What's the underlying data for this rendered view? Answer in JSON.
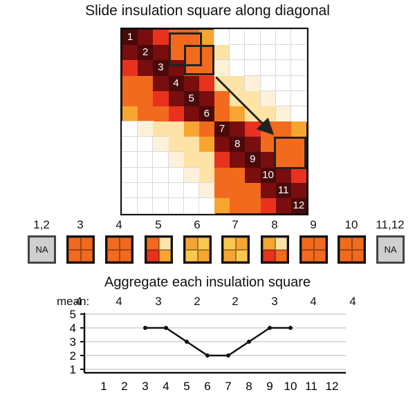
{
  "top_title": "Slide insulation square along diagonal",
  "diagonal_bins": [
    "1",
    "2",
    "3",
    "4",
    "5",
    "6",
    "7",
    "8",
    "9",
    "10",
    "11",
    "12"
  ],
  "square_labels": [
    "1,2",
    "3",
    "4",
    "5",
    "6",
    "7",
    "8",
    "9",
    "10",
    "11,12"
  ],
  "na_text": "NA",
  "aggregate_title": "Aggregate each insulation square",
  "mean_label": "mean:",
  "mean_values": [
    "4",
    "4",
    "3",
    "2",
    "2",
    "3",
    "4",
    "4"
  ],
  "colors": {
    "dark": "#4a0a0a",
    "darkred": "#7a0d0d",
    "red": "#e8321e",
    "orange": "#f26a1e",
    "lightorange": "#f7a531",
    "yellow": "#fbc74f",
    "paleyellow": "#fde3a6",
    "faint": "#fdf1da",
    "white": "#ffffff",
    "na_gray": "#cfcfcf"
  },
  "square_icons": [
    {
      "label": "1,2",
      "na": true
    },
    {
      "label": "3",
      "quads": [
        "orange",
        "orange",
        "orange",
        "orange"
      ]
    },
    {
      "label": "4",
      "quads": [
        "orange",
        "orange",
        "orange",
        "orange"
      ]
    },
    {
      "label": "5",
      "quads": [
        "orange",
        "paleyellow",
        "red",
        "lightorange"
      ]
    },
    {
      "label": "6",
      "quads": [
        "lightorange",
        "yellow",
        "yellow",
        "lightorange"
      ]
    },
    {
      "label": "7",
      "quads": [
        "yellow",
        "lightorange",
        "lightorange",
        "yellow"
      ]
    },
    {
      "label": "8",
      "quads": [
        "lightorange",
        "paleyellow",
        "red",
        "orange"
      ]
    },
    {
      "label": "9",
      "quads": [
        "orange",
        "orange",
        "orange",
        "orange"
      ]
    },
    {
      "label": "10",
      "quads": [
        "orange",
        "orange",
        "orange",
        "orange"
      ]
    },
    {
      "label": "11,12",
      "na": true
    }
  ],
  "chart_data": {
    "type": "line",
    "x": [
      1,
      2,
      3,
      4,
      5,
      6,
      7,
      8,
      9,
      10,
      11,
      12
    ],
    "series": [
      {
        "values": [
          null,
          null,
          4,
          4,
          3,
          2,
          2,
          3,
          4,
          4,
          null,
          null
        ]
      }
    ],
    "ylim": [
      1,
      5
    ],
    "yticks": [
      1,
      2,
      3,
      4,
      5
    ],
    "xticks": [
      "1",
      "2",
      "3",
      "4",
      "5",
      "6",
      "7",
      "8",
      "9",
      "10",
      "11",
      "12"
    ],
    "grid": true
  },
  "matrix": {
    "n": 12,
    "grid": [
      [
        "dark",
        "darkred",
        "red",
        "orange",
        "orange",
        "lightorange",
        "white",
        "white",
        "white",
        "white",
        "white",
        "white"
      ],
      [
        "darkred",
        "dark",
        "darkred",
        "orange",
        "orange",
        "orange",
        "paleyellow",
        "white",
        "white",
        "white",
        "white",
        "white"
      ],
      [
        "red",
        "darkred",
        "dark",
        "darkred",
        "orange",
        "orange",
        "faint",
        "white",
        "white",
        "white",
        "white",
        "white"
      ],
      [
        "orange",
        "orange",
        "darkred",
        "dark",
        "darkred",
        "red",
        "paleyellow",
        "paleyellow",
        "faint",
        "white",
        "white",
        "white"
      ],
      [
        "orange",
        "orange",
        "red",
        "darkred",
        "dark",
        "darkred",
        "orange",
        "paleyellow",
        "paleyellow",
        "faint",
        "white",
        "white"
      ],
      [
        "lightorange",
        "orange",
        "orange",
        "red",
        "darkred",
        "dark",
        "orange",
        "lightorange",
        "paleyellow",
        "paleyellow",
        "faint",
        "white"
      ],
      [
        "white",
        "faint",
        "paleyellow",
        "paleyellow",
        "lightorange",
        "orange",
        "dark",
        "darkred",
        "red",
        "orange",
        "orange",
        "lightorange"
      ],
      [
        "white",
        "white",
        "faint",
        "paleyellow",
        "paleyellow",
        "lightorange",
        "darkred",
        "dark",
        "darkred",
        "orange",
        "orange",
        "orange"
      ],
      [
        "white",
        "white",
        "white",
        "faint",
        "paleyellow",
        "paleyellow",
        "red",
        "darkred",
        "dark",
        "darkred",
        "orange",
        "orange"
      ],
      [
        "white",
        "white",
        "white",
        "white",
        "faint",
        "paleyellow",
        "orange",
        "orange",
        "darkred",
        "dark",
        "darkred",
        "red"
      ],
      [
        "white",
        "white",
        "white",
        "white",
        "white",
        "faint",
        "orange",
        "orange",
        "orange",
        "darkred",
        "dark",
        "darkred"
      ],
      [
        "white",
        "white",
        "white",
        "white",
        "white",
        "white",
        "lightorange",
        "orange",
        "orange",
        "red",
        "darkred",
        "dark"
      ]
    ]
  }
}
